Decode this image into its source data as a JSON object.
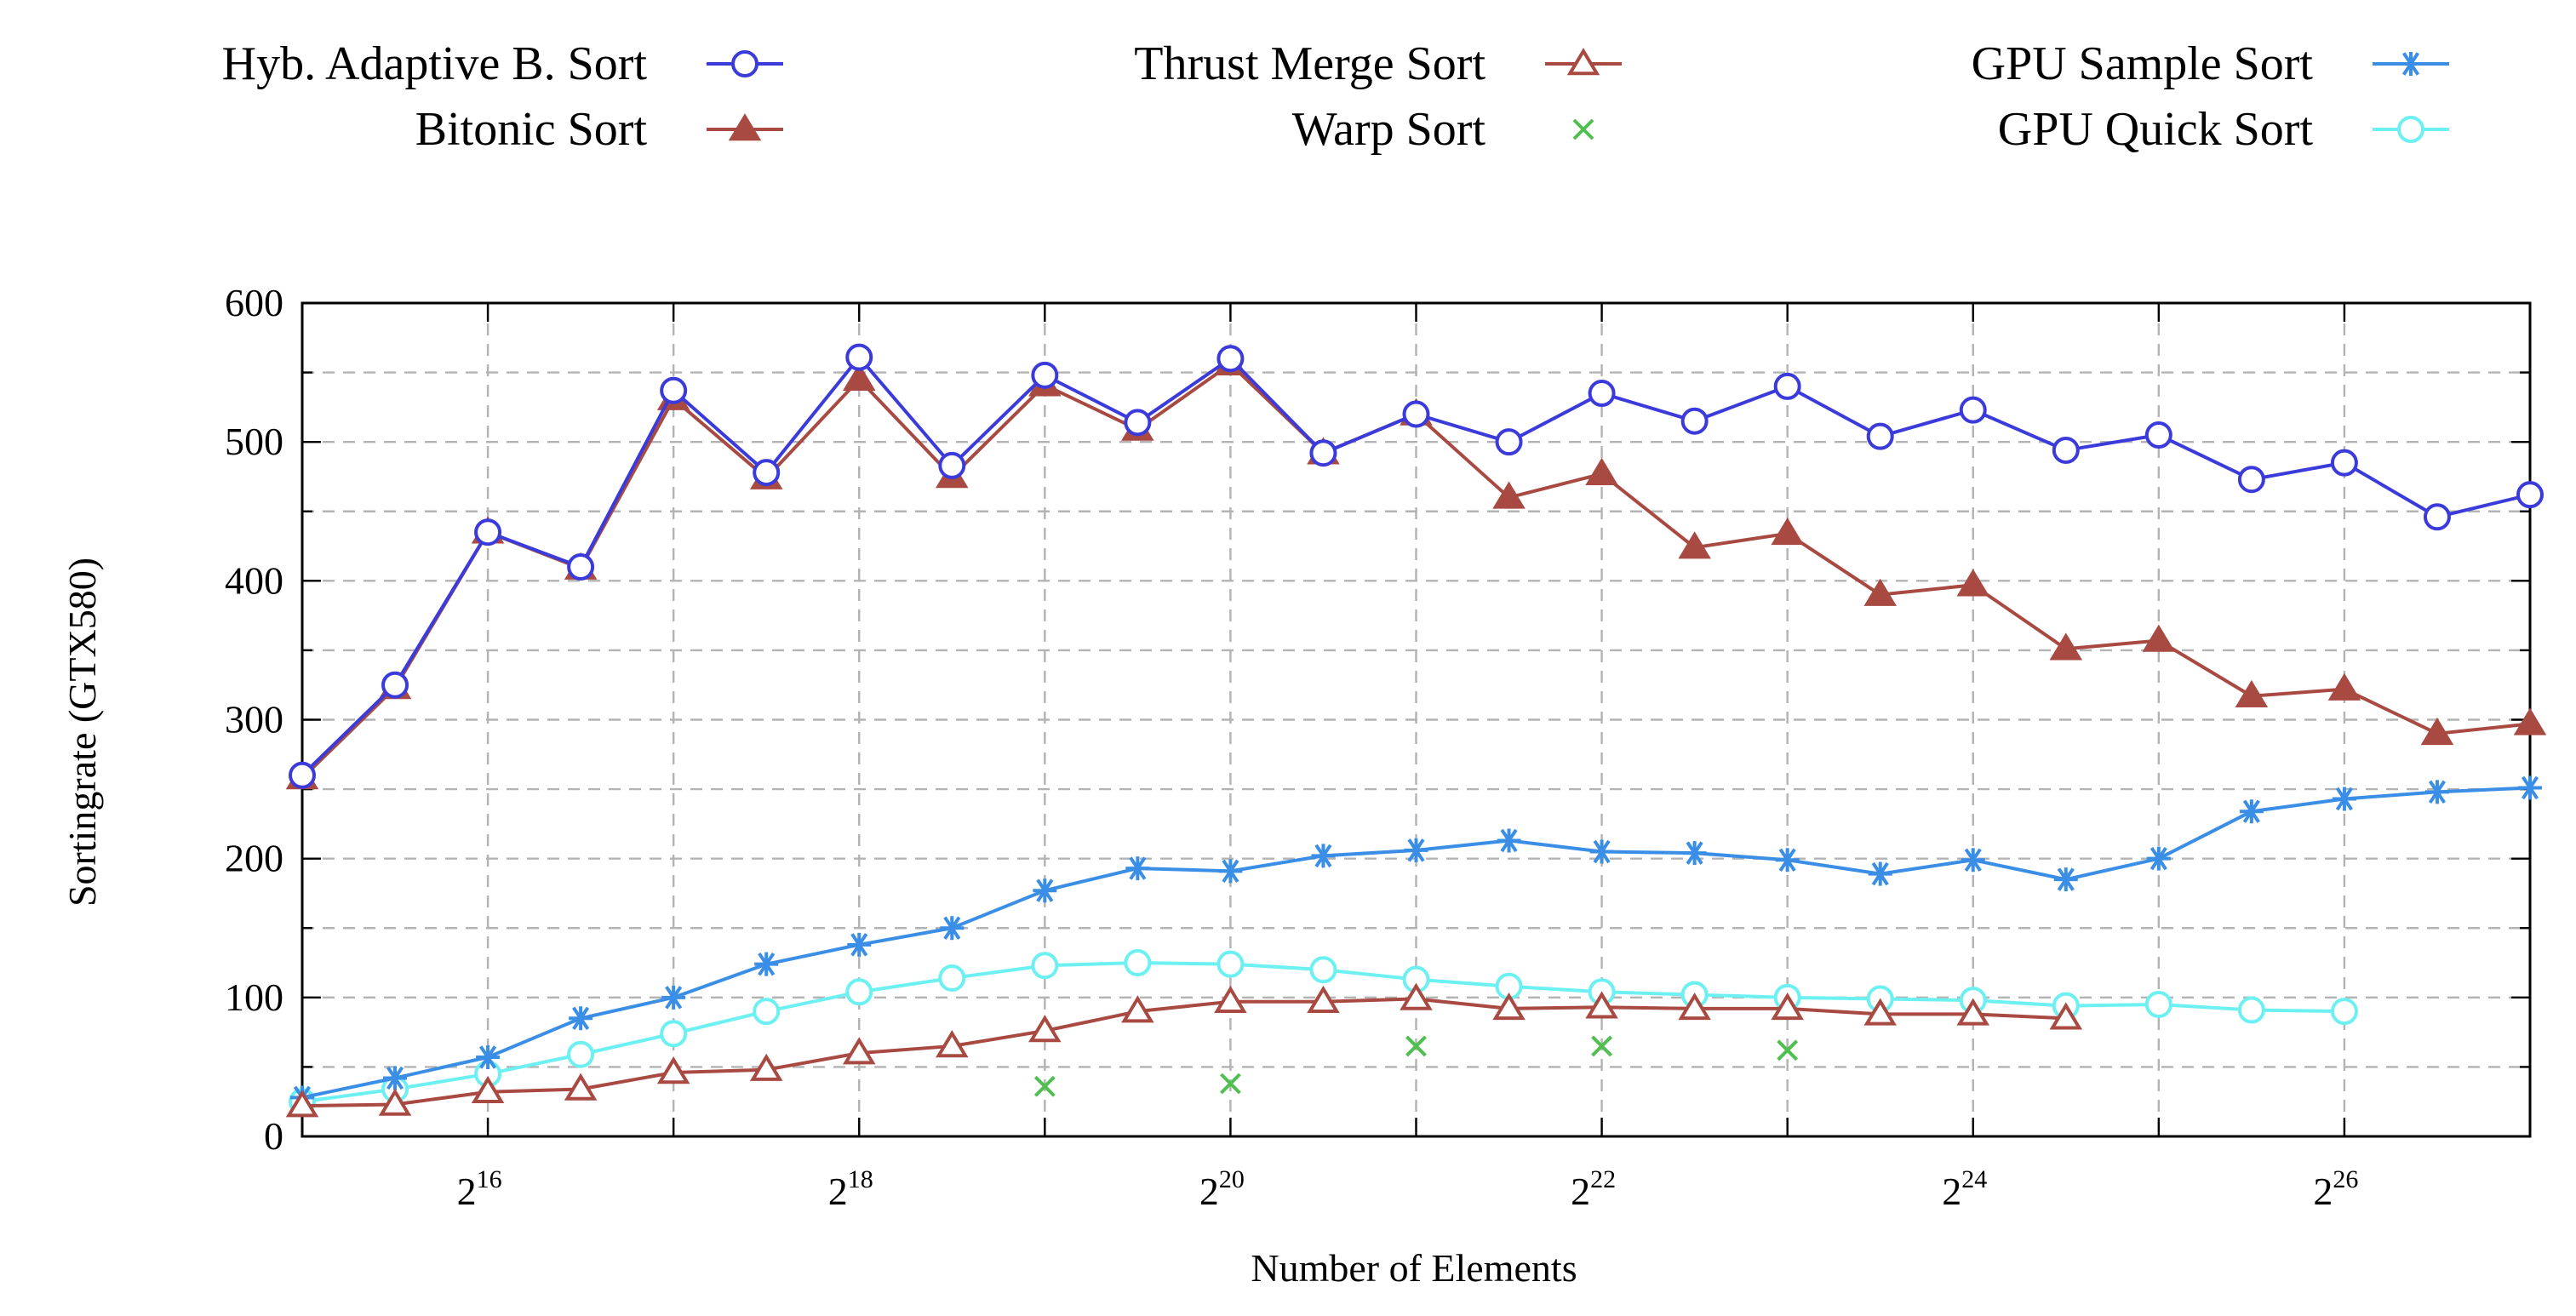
{
  "chart_data": {
    "type": "line",
    "xlabel": "Number of Elements",
    "ylabel": "Sortingrate (GTX580)",
    "x_scale": "log2",
    "x_ticks": [
      {
        "exponent": 16,
        "base": "2",
        "sup": "16"
      },
      {
        "exponent": 18,
        "base": "2",
        "sup": "18"
      },
      {
        "exponent": 20,
        "base": "2",
        "sup": "20"
      },
      {
        "exponent": 22,
        "base": "2",
        "sup": "22"
      },
      {
        "exponent": 24,
        "base": "2",
        "sup": "24"
      },
      {
        "exponent": 26,
        "base": "2",
        "sup": "26"
      }
    ],
    "y_ticks": [
      0,
      100,
      200,
      300,
      400,
      500,
      600
    ],
    "xlim_log2": [
      15,
      27
    ],
    "ylim": [
      0,
      600
    ],
    "grid": true,
    "legend_position": "top",
    "series": [
      {
        "name": "Hyb. Adaptive B. Sort",
        "color": "#3b3bdc",
        "marker": "circle-open",
        "x_log2": [
          15,
          15.5,
          16,
          16.5,
          17,
          17.5,
          18,
          18.5,
          19,
          19.5,
          20,
          20.5,
          21,
          21.5,
          22,
          22.5,
          23,
          23.5,
          24,
          24.5,
          25,
          25.5,
          26,
          26.5,
          27
        ],
        "values": [
          260,
          325,
          435,
          410,
          537,
          478,
          561,
          483,
          548,
          514,
          560,
          492,
          520,
          500,
          535,
          515,
          540,
          504,
          523,
          494,
          505,
          473,
          485,
          446,
          462
        ]
      },
      {
        "name": "Bitonic Sort",
        "color": "#a84a42",
        "marker": "triangle-filled",
        "x_log2": [
          15,
          15.5,
          16,
          16.5,
          17,
          17.5,
          18,
          18.5,
          19,
          19.5,
          20,
          20.5,
          21,
          21.5,
          22,
          22.5,
          23,
          23.5,
          24,
          24.5,
          25,
          25.5,
          26,
          26.5,
          27
        ],
        "values": [
          258,
          323,
          435,
          409,
          531,
          474,
          545,
          475,
          541,
          509,
          556,
          492,
          520,
          460,
          477,
          424,
          434,
          390,
          397,
          351,
          357,
          317,
          322,
          290,
          297
        ]
      },
      {
        "name": "Thrust Merge Sort",
        "color": "#a84a42",
        "marker": "triangle-open",
        "x_log2": [
          15,
          15.5,
          16,
          16.5,
          17,
          17.5,
          18,
          18.5,
          19,
          19.5,
          20,
          20.5,
          21,
          21.5,
          22,
          22.5,
          23,
          23.5,
          24,
          24.5
        ],
        "values": [
          22,
          23,
          32,
          34,
          46,
          48,
          60,
          65,
          76,
          90,
          97,
          97,
          99,
          92,
          93,
          92,
          92,
          88,
          88,
          85
        ]
      },
      {
        "name": "Warp Sort",
        "color": "#4fc04f",
        "marker": "x",
        "lines": false,
        "x_log2": [
          19,
          20,
          21,
          22,
          23
        ],
        "values": [
          36,
          38,
          65,
          65,
          62
        ]
      },
      {
        "name": "GPU Sample Sort",
        "color": "#3a8ee6",
        "marker": "star",
        "x_log2": [
          15,
          15.5,
          16,
          16.5,
          17,
          17.5,
          18,
          18.5,
          19,
          19.5,
          20,
          20.5,
          21,
          21.5,
          22,
          22.5,
          23,
          23.5,
          24,
          24.5,
          25,
          25.5,
          26,
          26.5,
          27
        ],
        "values": [
          28,
          42,
          57,
          85,
          100,
          124,
          138,
          150,
          177,
          193,
          191,
          202,
          206,
          213,
          205,
          204,
          199,
          189,
          199,
          185,
          200,
          234,
          243,
          248,
          251
        ]
      },
      {
        "name": "GPU Quick Sort",
        "color": "#6df0f2",
        "marker": "circle-open",
        "x_log2": [
          15,
          15.5,
          16,
          16.5,
          17,
          17.5,
          18,
          18.5,
          19,
          19.5,
          20,
          20.5,
          21,
          21.5,
          22,
          22.5,
          23,
          23.5,
          24,
          24.5,
          25,
          25.5,
          26
        ],
        "values": [
          25,
          34,
          45,
          59,
          74,
          90,
          104,
          114,
          123,
          125,
          124,
          120,
          113,
          108,
          104,
          102,
          100,
          99,
          98,
          94,
          95,
          91,
          90
        ]
      }
    ]
  }
}
